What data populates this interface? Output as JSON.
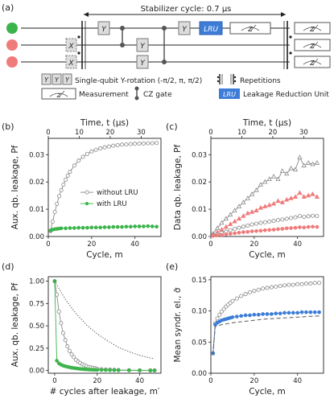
{
  "panel_labels": [
    "(a)",
    "(b)",
    "(c)",
    "(d)",
    "(e)"
  ],
  "circuit": {
    "cycle_label": "Stabilizer cycle: 0.7 μs",
    "y_gate": "Y",
    "x_gate": "X",
    "lru_gate": "LRU",
    "measure_glyph": "Z",
    "legend_y": "Single-qubit Y-rotation (-π/2, π, π/2)",
    "legend_rep": "Repetitions",
    "legend_meas": "Measurement",
    "legend_cz": "CZ gate",
    "legend_lru": "Leakage Reduction Unit",
    "qubit_colors": [
      "#3cb44b",
      "#f07b7b",
      "#f07b7b"
    ],
    "lru_color": "#3d7dd8"
  },
  "chart_data": [
    {
      "id": "b",
      "type": "line",
      "xlabel": "Cycle, m",
      "ylabel": "Aux. qb. leakage, Pf",
      "top_label": "Time, t (μs)",
      "xlim": [
        0,
        52
      ],
      "ylim": [
        0,
        0.036
      ],
      "xticks": [
        0,
        20,
        40
      ],
      "yticks": [
        0.0,
        0.01,
        0.02,
        0.03
      ],
      "top_ticks": [
        0,
        10,
        20,
        30
      ],
      "series": [
        {
          "name": "without LRU",
          "color": "#888888",
          "marker": "open-circle",
          "x": [
            1,
            2,
            3,
            4,
            5,
            6,
            7,
            8,
            9,
            10,
            12,
            14,
            16,
            18,
            20,
            22,
            24,
            26,
            28,
            30,
            32,
            34,
            36,
            38,
            40,
            42,
            44,
            46,
            48,
            50
          ],
          "y": [
            0.002,
            0.0055,
            0.009,
            0.012,
            0.0148,
            0.017,
            0.019,
            0.0208,
            0.0223,
            0.0237,
            0.026,
            0.0278,
            0.0292,
            0.0303,
            0.0312,
            0.0318,
            0.0323,
            0.0327,
            0.033,
            0.0333,
            0.0335,
            0.0337,
            0.0338,
            0.0339,
            0.034,
            0.0341,
            0.0341,
            0.0342,
            0.0342,
            0.0343
          ]
        },
        {
          "name": "with LRU",
          "color": "#3cb44b",
          "marker": "filled-circle",
          "x": [
            1,
            2,
            3,
            4,
            5,
            6,
            8,
            10,
            12,
            14,
            16,
            18,
            20,
            22,
            24,
            26,
            28,
            30,
            32,
            34,
            36,
            38,
            40,
            42,
            44,
            46,
            48,
            50
          ],
          "y": [
            0.0022,
            0.0025,
            0.0027,
            0.0028,
            0.0029,
            0.003,
            0.003,
            0.0031,
            0.0031,
            0.0032,
            0.0032,
            0.0032,
            0.0033,
            0.0033,
            0.0033,
            0.0034,
            0.0034,
            0.0035,
            0.0035,
            0.0035,
            0.0036,
            0.0036,
            0.0037,
            0.0037,
            0.0037,
            0.0038,
            0.0037,
            0.0036
          ]
        }
      ]
    },
    {
      "id": "c",
      "type": "line",
      "xlabel": "Cycle, m",
      "ylabel": "Data qb. leakage, Pf",
      "top_label": "Time, t (μs)",
      "xlim": [
        0,
        52
      ],
      "ylim": [
        0,
        0.036
      ],
      "xticks": [
        0,
        20,
        40
      ],
      "yticks": [
        0.0,
        0.01,
        0.02,
        0.03
      ],
      "top_ticks": [
        0,
        10,
        20,
        30
      ],
      "series": [
        {
          "color": "#888888",
          "marker": "open-triangle",
          "x": [
            1,
            3,
            5,
            7,
            9,
            11,
            13,
            15,
            17,
            19,
            21,
            23,
            25,
            27,
            29,
            31,
            33,
            35,
            37,
            39,
            41,
            43,
            45,
            47,
            49
          ],
          "y": [
            0.001,
            0.003,
            0.005,
            0.0065,
            0.008,
            0.0095,
            0.011,
            0.0125,
            0.014,
            0.0155,
            0.017,
            0.019,
            0.02,
            0.021,
            0.022,
            0.021,
            0.024,
            0.023,
            0.025,
            0.0245,
            0.029,
            0.026,
            0.027,
            0.0265,
            0.027
          ]
        },
        {
          "color": "#f07b7b",
          "marker": "filled-triangle",
          "x": [
            1,
            3,
            5,
            7,
            9,
            11,
            13,
            15,
            17,
            19,
            21,
            23,
            25,
            27,
            29,
            31,
            33,
            35,
            37,
            39,
            41,
            43,
            45,
            47,
            49
          ],
          "y": [
            0.0005,
            0.0015,
            0.0025,
            0.0035,
            0.0045,
            0.0055,
            0.0065,
            0.0075,
            0.0085,
            0.009,
            0.0095,
            0.0105,
            0.011,
            0.0115,
            0.012,
            0.013,
            0.0125,
            0.0135,
            0.014,
            0.0145,
            0.016,
            0.0145,
            0.015,
            0.0155,
            0.0145
          ]
        },
        {
          "color": "#888888",
          "marker": "open-circle",
          "x": [
            1,
            3,
            5,
            7,
            9,
            11,
            13,
            15,
            17,
            19,
            21,
            23,
            25,
            27,
            29,
            31,
            33,
            35,
            37,
            39,
            41,
            43,
            45,
            47,
            49
          ],
          "y": [
            0.0003,
            0.0008,
            0.0013,
            0.0018,
            0.0023,
            0.0028,
            0.0032,
            0.0036,
            0.004,
            0.0044,
            0.0047,
            0.005,
            0.0052,
            0.0055,
            0.0057,
            0.006,
            0.0062,
            0.0065,
            0.0068,
            0.007,
            0.0075,
            0.0072,
            0.0074,
            0.0076,
            0.0075
          ]
        },
        {
          "color": "#f07b7b",
          "marker": "filled-circle",
          "x": [
            1,
            3,
            5,
            7,
            9,
            11,
            13,
            15,
            17,
            19,
            21,
            23,
            25,
            27,
            29,
            31,
            33,
            35,
            37,
            39,
            41,
            43,
            45,
            47,
            49
          ],
          "y": [
            0.0002,
            0.0004,
            0.0006,
            0.0008,
            0.001,
            0.0012,
            0.0014,
            0.0016,
            0.0017,
            0.0019,
            0.002,
            0.0021,
            0.0023,
            0.0024,
            0.0025,
            0.0027,
            0.0028,
            0.003,
            0.0031,
            0.0032,
            0.0034,
            0.0033,
            0.0035,
            0.0036,
            0.0035
          ]
        }
      ]
    },
    {
      "id": "d",
      "type": "line",
      "xlabel": "# cycles after leakage, m′",
      "ylabel": "Aux. qb. leakage, Pf",
      "xlim": [
        -3,
        50
      ],
      "ylim": [
        -0.03,
        1.05
      ],
      "xticks": [
        0,
        20,
        40
      ],
      "yticks": [
        0.0,
        0.25,
        0.5,
        0.75,
        1.0
      ],
      "series": [
        {
          "color": "#888888",
          "marker": "open-circle",
          "x": [
            0,
            1,
            2,
            3,
            4,
            5,
            6,
            7,
            8,
            9,
            10,
            11,
            12,
            13,
            14,
            15,
            16,
            17,
            18,
            19,
            20,
            22,
            24,
            26,
            28,
            30,
            35,
            40,
            45,
            47
          ],
          "y": [
            1.0,
            0.85,
            0.66,
            0.53,
            0.42,
            0.34,
            0.27,
            0.22,
            0.18,
            0.15,
            0.12,
            0.1,
            0.085,
            0.07,
            0.06,
            0.05,
            0.04,
            0.035,
            0.03,
            0.025,
            0.02,
            0.015,
            0.012,
            0.01,
            0.008,
            0.006,
            0.004,
            0.003,
            0.002,
            0.002
          ]
        },
        {
          "color": "#3cb44b",
          "marker": "filled-circle",
          "x": [
            0,
            1,
            2,
            3,
            4,
            5,
            6,
            7,
            8,
            9,
            10,
            11,
            12,
            13,
            14,
            15,
            16,
            17,
            18,
            19,
            20,
            22,
            24,
            26,
            28,
            30,
            35,
            40,
            45,
            47
          ],
          "y": [
            1.0,
            0.11,
            0.08,
            0.065,
            0.055,
            0.048,
            0.042,
            0.037,
            0.032,
            0.028,
            0.025,
            0.022,
            0.019,
            0.017,
            0.015,
            0.013,
            0.011,
            0.01,
            0.009,
            0.008,
            0.007,
            0.006,
            0.005,
            0.004,
            0.004,
            0.003,
            0.002,
            0.002,
            0.001,
            0.001
          ]
        },
        {
          "color": "#555555",
          "style": "dotted",
          "x": [
            0,
            5,
            10,
            15,
            20,
            25,
            30,
            35,
            40,
            45,
            47
          ],
          "y": [
            1.0,
            0.8,
            0.64,
            0.51,
            0.41,
            0.33,
            0.26,
            0.21,
            0.17,
            0.14,
            0.13
          ]
        }
      ]
    },
    {
      "id": "e",
      "type": "line",
      "xlabel": "Cycle, m",
      "ylabel": "Mean syndr. el., σ̄",
      "xlim": [
        0,
        52
      ],
      "ylim": [
        0,
        0.155
      ],
      "xticks": [
        0,
        20,
        40
      ],
      "yticks": [
        0.0,
        0.05,
        0.1,
        0.15
      ],
      "series": [
        {
          "color": "#888888",
          "marker": "open-circle",
          "x": [
            1,
            2,
            3,
            4,
            5,
            6,
            7,
            8,
            9,
            10,
            12,
            14,
            16,
            18,
            20,
            22,
            24,
            26,
            28,
            30,
            32,
            34,
            36,
            38,
            40,
            42,
            44,
            46,
            48,
            50
          ],
          "y": [
            0.032,
            0.08,
            0.088,
            0.094,
            0.099,
            0.103,
            0.107,
            0.11,
            0.113,
            0.116,
            0.12,
            0.124,
            0.127,
            0.13,
            0.132,
            0.134,
            0.136,
            0.137,
            0.138,
            0.139,
            0.14,
            0.141,
            0.142,
            0.142,
            0.143,
            0.143,
            0.144,
            0.144,
            0.145,
            0.145
          ]
        },
        {
          "color": "#3d7dd8",
          "marker": "filled-circle",
          "x": [
            1,
            2,
            3,
            4,
            5,
            6,
            7,
            8,
            9,
            10,
            12,
            14,
            16,
            18,
            20,
            22,
            24,
            26,
            28,
            30,
            32,
            34,
            36,
            38,
            40,
            42,
            44,
            46,
            48,
            50
          ],
          "y": [
            0.032,
            0.078,
            0.081,
            0.083,
            0.085,
            0.086,
            0.087,
            0.088,
            0.089,
            0.09,
            0.091,
            0.092,
            0.093,
            0.093,
            0.094,
            0.094,
            0.095,
            0.095,
            0.095,
            0.096,
            0.096,
            0.097,
            0.097,
            0.097,
            0.097,
            0.098,
            0.098,
            0.098,
            0.098,
            0.098
          ]
        },
        {
          "color": "#666666",
          "style": "dashed",
          "x": [
            1,
            2,
            5,
            10,
            15,
            20,
            25,
            30,
            35,
            40,
            45,
            50
          ],
          "y": [
            0.03,
            0.075,
            0.078,
            0.081,
            0.083,
            0.085,
            0.087,
            0.088,
            0.089,
            0.09,
            0.091,
            0.092
          ]
        }
      ]
    }
  ]
}
